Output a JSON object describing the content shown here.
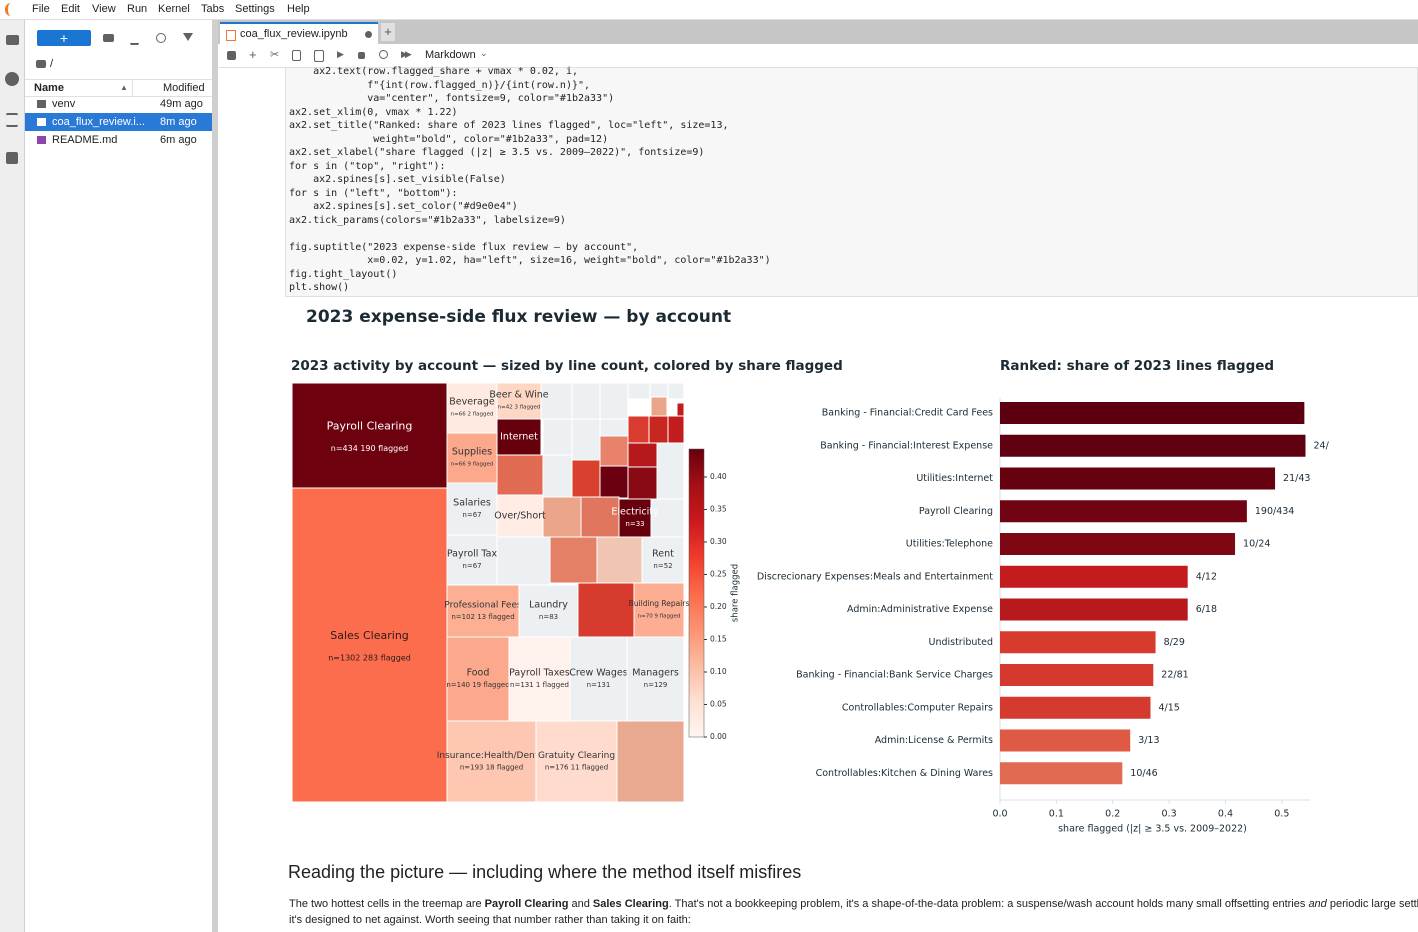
{
  "menu": [
    "File",
    "Edit",
    "View",
    "Run",
    "Kernel",
    "Tabs",
    "Settings",
    "Help"
  ],
  "file_browser": {
    "path": "/",
    "columns": [
      "Name",
      "Modified"
    ],
    "files": [
      {
        "name": "venv",
        "modified": "49m ago"
      },
      {
        "name": "coa_flux_review.i...",
        "modified": "8m ago"
      },
      {
        "name": "README.md",
        "modified": "6m ago"
      }
    ]
  },
  "notebook": {
    "tab": "coa_flux_review.ipynb",
    "cell_type": "Markdown",
    "code": [
      [
        "    ax2.text(row.flagged_share + vmax * 0.02, i,",
        "             f\"{int(row.flagged_n)}/{int(row.n)}\",",
        "             va=\"center\", fontsize=9, color=\"#1b2a33\")",
        "ax2.set_xlim(0, vmax * 1.22)",
        "ax2.set_title(\"Ranked: share of 2023 lines flagged\", loc=\"left\", size=13,",
        "              weight=\"bold\", color=\"#1b2a33\", pad=12)",
        "ax2.set_xlabel(\"share flagged (|z| ≥ 3.5 vs. 2009–2022)\", fontsize=9)",
        "for s in (\"top\", \"right\"):",
        "    ax2.spines[s].set_visible(False)",
        "for s in (\"left\", \"bottom\"):",
        "    ax2.spines[s].set_color(\"#d9e0e4\")",
        "ax2.tick_params(colors=\"#1b2a33\", labelsize=9)"
      ],
      [
        "fig.suptitle(\"2023 expense-side flux review — by account\",",
        "             x=0.02, y=1.02, ha=\"left\", size=16, weight=\"bold\", color=\"#1b2a33\")",
        "fig.tight_layout()",
        "plt.show()"
      ]
    ]
  },
  "figure_title": "2023 expense-side flux review — by account",
  "chart_data": [
    {
      "type": "treemap",
      "title": "2023 activity by account — sized by line count, colored by share flagged",
      "colors": [
        "#fff5f0",
        "#fee0d2",
        "#fcbba1",
        "#fc9272",
        "#fb6a4a",
        "#ef3b2c",
        "#cb181d",
        "#a50f15",
        "#67000d"
      ],
      "zero_color": "#edf0f3",
      "cells": [
        {
          "label": "Payroll Clearing",
          "detail": "n=434  190 flagged",
          "n": 434,
          "share": 0.438
        },
        {
          "label": "Sales Clearing",
          "detail": "n=1302  283 flagged",
          "n": 1302,
          "share": 0.217
        },
        {
          "label": "Beverage",
          "detail": "n=66  2 flagged",
          "n": 66,
          "share": 0.03
        },
        {
          "label": "Beer & Wine",
          "detail": "n=42  3 flagged",
          "n": 42,
          "share": 0.071
        },
        {
          "label": "Internet",
          "n": 43,
          "share": 0.488
        },
        {
          "label": "Supplies",
          "detail": "n=66  9 flagged",
          "n": 66,
          "share": 0.136
        },
        {
          "label": "Salaries",
          "detail": "n=67",
          "n": 67,
          "share": 0
        },
        {
          "label": "Over/Short",
          "share": 0.02
        },
        {
          "label": "Electricity",
          "detail": "n=33",
          "n": 33,
          "share": 0.45
        },
        {
          "label": "Payroll Tax",
          "detail": "n=67",
          "n": 67,
          "share": 0
        },
        {
          "label": "Rent",
          "detail": "n=52",
          "n": 52,
          "share": 0
        },
        {
          "label": "Professional Fees",
          "detail": "n=102  13 flagged",
          "n": 102,
          "share": 0.127
        },
        {
          "label": "Laundry",
          "detail": "n=83",
          "n": 83,
          "share": 0
        },
        {
          "label": "Building Repairs",
          "detail": "n=70  9 flagged",
          "n": 70,
          "share": 0.129
        },
        {
          "label": "Food",
          "detail": "n=140  19 flagged",
          "n": 140,
          "share": 0.136
        },
        {
          "label": "Payroll Taxes",
          "detail": "n=131  1 flagged",
          "n": 131,
          "share": 0.008
        },
        {
          "label": "Crew Wages",
          "detail": "n=131",
          "n": 131,
          "share": 0
        },
        {
          "label": "Managers",
          "detail": "n=129",
          "n": 129,
          "share": 0
        },
        {
          "label": "Insurance:Health/Dental",
          "detail": "n=193  18 flagged",
          "n": 193,
          "share": 0.093
        },
        {
          "label": "Gratuity Clearing",
          "detail": "n=176  11 flagged",
          "n": 176,
          "share": 0.0625
        }
      ],
      "colorbar": {
        "label": "share flagged",
        "lim": [
          0,
          0.443
        ],
        "ticks": [
          {
            "value": 0,
            "label": "0.00"
          },
          {
            "value": 0.05,
            "label": "0.05"
          },
          {
            "value": 0.1,
            "label": "0.10"
          },
          {
            "value": 0.15,
            "label": "0.15"
          },
          {
            "value": 0.2,
            "label": "0.20"
          },
          {
            "value": 0.25,
            "label": "0.25"
          },
          {
            "value": 0.3,
            "label": "0.30"
          },
          {
            "value": 0.35,
            "label": "0.35"
          },
          {
            "value": 0.4,
            "label": "0.40"
          }
        ]
      }
    },
    {
      "type": "bar",
      "orientation": "horizontal",
      "title": "Ranked: share of 2023 lines flagged",
      "categories": [
        "Banking - Financial:Credit Card Fees",
        "Banking - Financial:Interest Expense",
        "Utilities:Internet",
        "Payroll Clearing",
        "Utilities:Telephone",
        "Discrecionary Expenses:Meals and Entertainment",
        "Admin:Administrative Expense",
        "Undistributed",
        "Banking - Financial:Bank Service Charges",
        "Controllables:Computer Repairs",
        "Admin:License & Permits",
        "Controllables:Kitchen & Dining Wares"
      ],
      "values": [
        0.54,
        0.542,
        0.488,
        0.438,
        0.417,
        0.333,
        0.333,
        0.276,
        0.272,
        0.267,
        0.231,
        0.217
      ],
      "value_labels": [
        null,
        "24/",
        "21/43",
        "190/434",
        "10/24",
        "4/12",
        "6/18",
        "8/29",
        "22/81",
        "4/15",
        "3/13",
        "10/46"
      ],
      "colors": [
        "#5c0010",
        "#5e0010",
        "#66010f",
        "#700412",
        "#7d0713",
        "#c41c1e",
        "#b8191d",
        "#d63b2e",
        "#d5392d",
        "#d43a2e",
        "#de5a45",
        "#e06a52"
      ],
      "xlim": [
        0,
        0.55
      ],
      "xticks": [
        {
          "value": 0,
          "label": "0.0"
        },
        {
          "value": 0.1,
          "label": "0.1"
        },
        {
          "value": 0.2,
          "label": "0.2"
        },
        {
          "value": 0.3,
          "label": "0.3"
        },
        {
          "value": 0.4,
          "label": "0.4"
        },
        {
          "value": 0.5,
          "label": "0.5"
        }
      ],
      "xlabel": "share flagged (|z| ≥ 3.5 vs. 2009–2022)"
    }
  ],
  "markdown": {
    "heading": "Reading the picture — including where the method itself misfires",
    "paragraph": [
      [
        {
          "text": "The two hottest cells in the treemap are ",
          "style": "normal"
        },
        {
          "text": "Payroll Clearing",
          "style": "bold"
        },
        {
          "text": " and ",
          "style": "normal"
        },
        {
          "text": "Sales Clearing",
          "style": "bold"
        },
        {
          "text": ". That's not a bookkeeping problem, it's a shape-of-the-data problem: a suspense/wash account holds many small offsetting entries ",
          "style": "normal"
        },
        {
          "text": "and",
          "style": "italic"
        },
        {
          "text": " periodic large settl",
          "style": "normal"
        }
      ],
      [
        {
          "text": "it's designed to net against. Worth seeing that number rather than taking it on faith:",
          "style": "normal"
        }
      ]
    ]
  }
}
